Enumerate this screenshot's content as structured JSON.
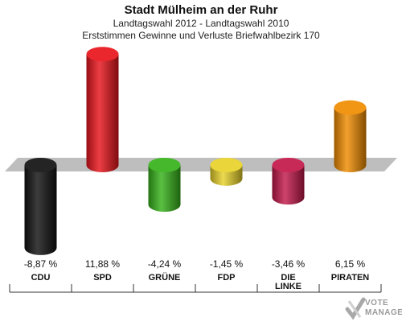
{
  "header": {
    "title": "Stadt Mülheim an der Ruhr",
    "subtitle1": "Landtagswahl 2012 - Landtagswahl 2010",
    "subtitle2": "Erststimmen Gewinne und Verluste Briefwahlbezirk 170"
  },
  "chart_data": {
    "type": "bar",
    "categories": [
      "CDU",
      "SPD",
      "GRÜNE",
      "FDP",
      "DIE LINKE",
      "PIRATEN"
    ],
    "category_lines": [
      [
        "CDU"
      ],
      [
        "SPD"
      ],
      [
        "GRÜNE"
      ],
      [
        "FDP"
      ],
      [
        "DIE",
        "LINKE"
      ],
      [
        "PIRATEN"
      ]
    ],
    "values": [
      -8.87,
      11.88,
      -4.24,
      -1.45,
      -3.46,
      6.15
    ],
    "value_labels": [
      "-8,87 %",
      "11,88 %",
      "-4,24 %",
      "-1,45 %",
      "-3,46 %",
      "6,15 %"
    ],
    "colors": [
      "#111111",
      "#e8141b",
      "#36b21a",
      "#e8d22a",
      "#c3184a",
      "#f08c00"
    ],
    "title": "Stadt Mülheim an der Ruhr",
    "subtitle": "Landtagswahl 2012 - Landtagswahl 2010",
    "xlabel": "",
    "ylabel": "",
    "baseline": 0,
    "unit": "%",
    "style": "3d-cylinder"
  },
  "watermark": {
    "line1": "VOTE",
    "line2": "MANAGER",
    "icon": "checkmark-cross-icon"
  }
}
